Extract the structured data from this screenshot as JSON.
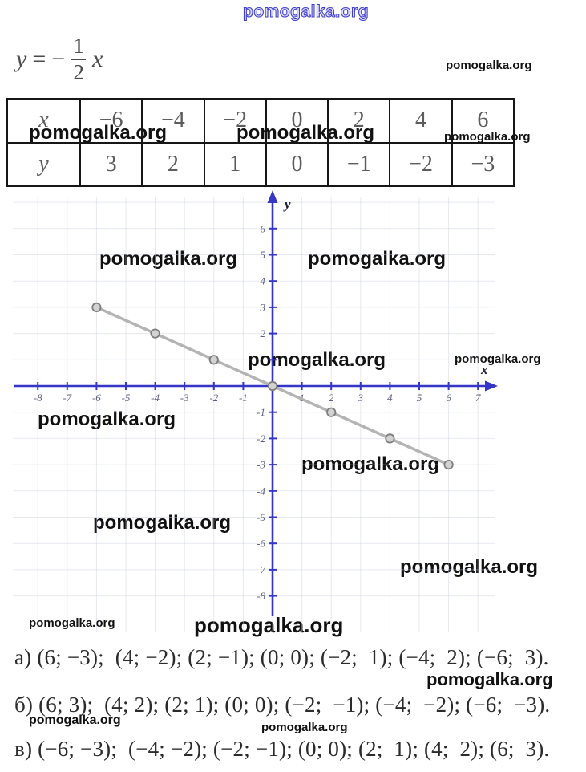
{
  "watermark": {
    "text": "pomogalka.org"
  },
  "formula": {
    "lhs": "y",
    "eq": "=",
    "minus": "−",
    "num": "1",
    "den": "2",
    "var": "x"
  },
  "table": {
    "header_x": "x",
    "header_y": "y",
    "x_values": [
      "−6",
      "−4",
      "−2",
      "0",
      "2",
      "4",
      "6"
    ],
    "y_values": [
      "3",
      "2",
      "1",
      "0",
      "−1",
      "−2",
      "−3"
    ]
  },
  "chart_data": {
    "type": "line",
    "title": "",
    "xlabel": "x",
    "ylabel": "y",
    "x": [
      -6,
      -4,
      -2,
      0,
      2,
      4,
      6
    ],
    "y": [
      3,
      2,
      1,
      0,
      -1,
      -2,
      -3
    ],
    "xlim": [
      -8.7,
      7.6
    ],
    "ylim": [
      -8.6,
      7.4
    ],
    "x_tick_labels": [
      -8,
      -7,
      -6,
      -5,
      -4,
      -3,
      -2,
      -1,
      1,
      2,
      3,
      4,
      5,
      6,
      7
    ],
    "y_tick_labels": [
      6,
      5,
      4,
      3,
      2,
      -1,
      -2,
      -3,
      -4,
      -5,
      -6,
      -7,
      -8
    ],
    "grid": true,
    "axis_color": "#3636c6",
    "line_color": "#b4b4b4",
    "marker": "circle"
  },
  "answers": [
    "а) (6; −3);  (4; −2); (2; −1); (0; 0); (−2;  1); (−4;  2); (−6;  3).",
    "б) (6; 3);  (4; 2); (2; 1); (0; 0); (−2;  −1); (−4;  −2); (−6;  −3).",
    "в) (−6; −3);  (−4; −2); (−2; −1); (0; 0); (2;  1); (4;  2); (6;  3)."
  ]
}
